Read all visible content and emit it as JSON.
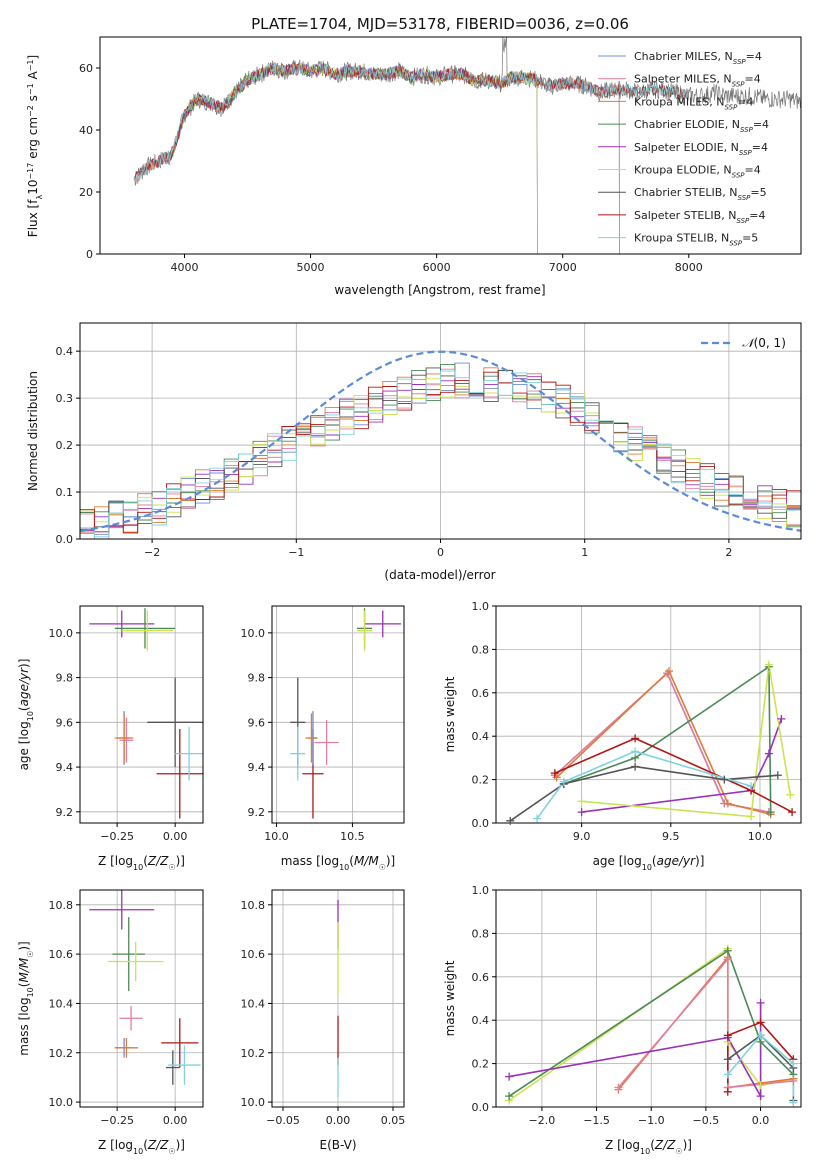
{
  "title": "PLATE=1704, MJD=53178, FIBERID=0036, z=0.06",
  "colors": {
    "Chabrier MILES": "#6b8fd4",
    "Salpeter MILES": "#e27ea0",
    "Kroupa MILES": "#e07b39",
    "Chabrier ELODIE": "#4a8a55",
    "Salpeter ELODIE": "#9b30b8",
    "Kroupa ELODIE": "#cde34e",
    "Chabrier STELIB": "#555555",
    "Salpeter STELIB": "#b01616",
    "Kroupa STELIB": "#7fd3de"
  },
  "chart_data": [
    {
      "id": "spectrum",
      "type": "line",
      "title": "PLATE=1704, MJD=53178, FIBERID=0036, z=0.06",
      "xlabel": "wavelength [Angstrom, rest frame]",
      "ylabel": "Flux [f_λ10^-17 erg cm^-2 s^-1 A^-1]",
      "xlim": [
        3330,
        8890
      ],
      "ylim": [
        0,
        70
      ],
      "xticks": [
        4000,
        5000,
        6000,
        7000,
        8000
      ],
      "yticks": [
        0,
        20,
        40,
        60
      ],
      "grid": false,
      "legend": "top-right",
      "data_spectrum": {
        "name": "data",
        "x": [
          3600,
          3700,
          3800,
          3900,
          4000,
          4100,
          4200,
          4300,
          4400,
          4500,
          4600,
          4700,
          4800,
          4900,
          5000,
          5100,
          5200,
          5300,
          5400,
          5500,
          5600,
          5700,
          5800,
          5900,
          6000,
          6100,
          6200,
          6300,
          6400,
          6500,
          6600,
          6700,
          6800,
          6900,
          7000,
          7100,
          7200,
          7300,
          7400,
          7500,
          7600,
          7700,
          7800,
          7900,
          8000,
          8100,
          8200,
          8300,
          8400,
          8500,
          8600,
          8700,
          8800,
          8890
        ],
        "y": [
          24,
          28,
          30,
          32,
          45,
          50,
          49,
          47,
          52,
          56,
          58,
          60,
          59,
          60,
          59,
          60,
          58,
          59,
          59,
          58,
          58,
          59,
          57,
          58,
          57,
          58,
          58,
          56,
          56,
          55,
          57,
          57,
          56,
          54,
          55,
          55,
          54,
          52,
          53,
          53,
          52,
          53,
          53,
          52,
          51,
          51,
          52,
          51,
          51,
          51,
          50,
          50,
          50,
          49
        ]
      },
      "series": [
        {
          "name": "Chabrier MILES, N_SSP=4",
          "ssp": "4",
          "xmin": 3600,
          "xmax": 7450
        },
        {
          "name": "Salpeter MILES, N_SSP=4",
          "ssp": "4",
          "xmin": 3600,
          "xmax": 7450
        },
        {
          "name": "Kroupa MILES, N_SSP=4",
          "ssp": "4",
          "xmin": 3600,
          "xmax": 7450
        },
        {
          "name": "Chabrier ELODIE, N_SSP=4",
          "ssp": "4",
          "xmin": 3900,
          "xmax": 6800
        },
        {
          "name": "Salpeter ELODIE, N_SSP=4",
          "ssp": "4",
          "xmin": 3900,
          "xmax": 6800
        },
        {
          "name": "Kroupa ELODIE, N_SSP=4",
          "ssp": "4",
          "xmin": 3900,
          "xmax": 6800
        },
        {
          "name": "Chabrier STELIB, N_SSP=5",
          "ssp": "5",
          "xmin": 3600,
          "xmax": 8000
        },
        {
          "name": "Salpeter STELIB, N_SSP=4",
          "ssp": "4",
          "xmin": 3600,
          "xmax": 8000
        },
        {
          "name": "Kroupa STELIB, N_SSP=5",
          "ssp": "5",
          "xmin": 3600,
          "xmax": 8000
        }
      ]
    },
    {
      "id": "residuals",
      "type": "histogram",
      "xlabel": "(data-model)/error",
      "ylabel": "Normed distribution",
      "xlim": [
        -2.5,
        2.5
      ],
      "ylim": [
        0,
        0.46
      ],
      "xticks": [
        -2,
        -1,
        0,
        1,
        2
      ],
      "yticks": [
        0.0,
        0.1,
        0.2,
        0.3,
        0.4
      ],
      "grid": true,
      "legend": "top-right",
      "reference_curve": {
        "name": "N(0,1)",
        "mean": 0,
        "sigma": 1
      },
      "bin_width": 0.1,
      "envelope_x": [
        -2.5,
        -2.0,
        -1.5,
        -1.0,
        -0.5,
        0.0,
        0.5,
        1.0,
        1.5,
        2.0,
        2.5
      ],
      "envelope_y": [
        0.03,
        0.06,
        0.13,
        0.21,
        0.28,
        0.34,
        0.33,
        0.27,
        0.18,
        0.1,
        0.06
      ]
    },
    {
      "id": "age-vs-Z",
      "type": "errorbar",
      "xlabel": "Z [log10(Z/Z_sun)]",
      "ylabel": "age [log10(age/yr)]",
      "xlim": [
        -0.41,
        0.12
      ],
      "ylim": [
        9.15,
        10.12
      ],
      "xticks": [
        -0.25,
        0.0
      ],
      "yticks": [
        9.2,
        9.4,
        9.6,
        9.8,
        10.0
      ],
      "grid": true,
      "points": [
        {
          "series": "Salpeter ELODIE",
          "x": -0.23,
          "y": 10.04,
          "xerr": 0.14,
          "yerr": 0.06
        },
        {
          "series": "Chabrier ELODIE",
          "x": -0.13,
          "y": 10.02,
          "xerr": 0.13,
          "yerr": 0.09
        },
        {
          "series": "Kroupa ELODIE",
          "x": -0.12,
          "y": 10.01,
          "xerr": 0.11,
          "yerr": 0.09
        },
        {
          "series": "Chabrier MILES",
          "x": -0.22,
          "y": 9.53,
          "xerr": 0.03,
          "yerr": 0.12
        },
        {
          "series": "Salpeter MILES",
          "x": -0.21,
          "y": 9.52,
          "xerr": 0.03,
          "yerr": 0.1
        },
        {
          "series": "Kroupa MILES",
          "x": -0.22,
          "y": 9.53,
          "xerr": 0.04,
          "yerr": 0.11
        },
        {
          "series": "Chabrier STELIB",
          "x": 0.0,
          "y": 9.6,
          "xerr": 0.12,
          "yerr": 0.2
        },
        {
          "series": "Salpeter STELIB",
          "x": 0.02,
          "y": 9.37,
          "xerr": 0.1,
          "yerr": 0.2
        },
        {
          "series": "Kroupa STELIB",
          "x": 0.06,
          "y": 9.46,
          "xerr": 0.06,
          "yerr": 0.12
        }
      ]
    },
    {
      "id": "age-vs-mass",
      "type": "errorbar",
      "xlabel": "mass [log10(M/M_sun)]",
      "ylabel": "",
      "xlim": [
        9.97,
        10.84
      ],
      "ylim": [
        9.15,
        10.12
      ],
      "xticks": [
        10.0,
        10.5
      ],
      "yticks": [
        9.2,
        9.4,
        9.6,
        9.8,
        10.0
      ],
      "grid": true,
      "points": [
        {
          "series": "Salpeter ELODIE",
          "x": 10.7,
          "y": 10.04,
          "xerr": 0.12,
          "yerr": 0.06
        },
        {
          "series": "Chabrier ELODIE",
          "x": 10.58,
          "y": 10.02,
          "xerr": 0.05,
          "yerr": 0.09
        },
        {
          "series": "Kroupa ELODIE",
          "x": 10.58,
          "y": 10.01,
          "xerr": 0.05,
          "yerr": 0.09
        },
        {
          "series": "Chabrier STELIB",
          "x": 10.14,
          "y": 9.6,
          "xerr": 0.05,
          "yerr": 0.2
        },
        {
          "series": "Salpeter STELIB",
          "x": 10.24,
          "y": 9.37,
          "xerr": 0.07,
          "yerr": 0.2
        },
        {
          "series": "Kroupa STELIB",
          "x": 10.14,
          "y": 9.46,
          "xerr": 0.05,
          "yerr": 0.12
        },
        {
          "series": "Chabrier MILES",
          "x": 10.24,
          "y": 9.53,
          "xerr": 0.03,
          "yerr": 0.12
        },
        {
          "series": "Salpeter MILES",
          "x": 10.33,
          "y": 9.51,
          "xerr": 0.08,
          "yerr": 0.1
        },
        {
          "series": "Kroupa MILES",
          "x": 10.23,
          "y": 9.53,
          "xerr": 0.04,
          "yerr": 0.11
        }
      ]
    },
    {
      "id": "weight-vs-age",
      "type": "line",
      "xlabel": "age [log10(age/yr)]",
      "ylabel": "mass weight",
      "xlim": [
        8.52,
        10.23
      ],
      "ylim": [
        0,
        1
      ],
      "xticks": [
        9.0,
        9.5,
        10.0
      ],
      "yticks": [
        0.0,
        0.2,
        0.4,
        0.6,
        0.8,
        1.0
      ],
      "grid": true,
      "series": [
        {
          "color": "Chabrier MILES",
          "x": [
            8.85,
            9.48,
            9.8,
            10.05
          ],
          "y": [
            0.22,
            0.69,
            0.09,
            0.05
          ]
        },
        {
          "color": "Salpeter MILES",
          "x": [
            8.85,
            9.48,
            9.8,
            10.05
          ],
          "y": [
            0.22,
            0.69,
            0.09,
            0.05
          ]
        },
        {
          "color": "Kroupa MILES",
          "x": [
            8.86,
            9.49,
            9.82,
            10.06
          ],
          "y": [
            0.21,
            0.7,
            0.09,
            0.04
          ]
        },
        {
          "color": "Chabrier ELODIE",
          "x": [
            8.9,
            9.3,
            10.05,
            10.06
          ],
          "y": [
            0.18,
            0.3,
            0.72,
            0.05
          ]
        },
        {
          "color": "Salpeter ELODIE",
          "x": [
            9.0,
            9.95,
            10.05,
            10.12
          ],
          "y": [
            0.05,
            0.15,
            0.32,
            0.48
          ]
        },
        {
          "color": "Kroupa ELODIE",
          "x": [
            9.0,
            9.95,
            10.05,
            10.17
          ],
          "y": [
            0.1,
            0.03,
            0.73,
            0.13
          ]
        },
        {
          "color": "Chabrier STELIB",
          "x": [
            8.6,
            8.9,
            9.3,
            9.8,
            10.1
          ],
          "y": [
            0.01,
            0.18,
            0.26,
            0.2,
            0.22
          ]
        },
        {
          "color": "Salpeter STELIB",
          "x": [
            8.85,
            9.3,
            9.95,
            10.18
          ],
          "y": [
            0.23,
            0.39,
            0.15,
            0.05
          ]
        },
        {
          "color": "Kroupa STELIB",
          "x": [
            8.75,
            8.9,
            9.3,
            9.95
          ],
          "y": [
            0.02,
            0.19,
            0.33,
            0.17
          ]
        }
      ]
    },
    {
      "id": "mass-vs-Z",
      "type": "errorbar",
      "xlabel": "Z [log10(Z/Z_sun)]",
      "ylabel": "mass [log10(M/M_sun)]",
      "xlim": [
        -0.41,
        0.12
      ],
      "ylim": [
        9.98,
        10.86
      ],
      "xticks": [
        -0.25,
        0.0
      ],
      "yticks": [
        10.0,
        10.2,
        10.4,
        10.6,
        10.8
      ],
      "grid": true,
      "points": [
        {
          "series": "Salpeter ELODIE",
          "x": -0.23,
          "y": 10.78,
          "xerr": 0.14,
          "yerr": 0.08
        },
        {
          "series": "Chabrier ELODIE",
          "x": -0.2,
          "y": 10.6,
          "xerr": 0.07,
          "yerr": 0.15
        },
        {
          "series": "Kroupa ELODIE",
          "x": -0.17,
          "y": 10.57,
          "xerr": 0.12,
          "yerr": 0.08
        },
        {
          "series": "Salpeter MILES",
          "x": -0.19,
          "y": 10.34,
          "xerr": 0.05,
          "yerr": 0.05
        },
        {
          "series": "Chabrier MILES",
          "x": -0.22,
          "y": 10.22,
          "xerr": 0.04,
          "yerr": 0.04
        },
        {
          "series": "Kroupa MILES",
          "x": -0.21,
          "y": 10.22,
          "xerr": 0.05,
          "yerr": 0.04
        },
        {
          "series": "Salpeter STELIB",
          "x": 0.02,
          "y": 10.24,
          "xerr": 0.08,
          "yerr": 0.1
        },
        {
          "series": "Chabrier STELIB",
          "x": -0.01,
          "y": 10.14,
          "xerr": 0.03,
          "yerr": 0.07
        },
        {
          "series": "Kroupa STELIB",
          "x": 0.04,
          "y": 10.15,
          "xerr": 0.07,
          "yerr": 0.08
        }
      ]
    },
    {
      "id": "mass-vs-ebv",
      "type": "errorbar",
      "xlabel": "E(B-V)",
      "ylabel": "",
      "xlim": [
        -0.06,
        0.06
      ],
      "ylim": [
        9.98,
        10.86
      ],
      "xticks": [
        -0.05,
        0.0,
        0.05
      ],
      "yticks": [
        10.0,
        10.2,
        10.4,
        10.6,
        10.8
      ],
      "grid": true,
      "points": [
        {
          "series": "Salpeter ELODIE",
          "x": 0.0,
          "y": 10.72,
          "xerr": 0.0,
          "yerr": 0.1
        },
        {
          "series": "Kroupa ELODIE",
          "x": 0.0,
          "y": 10.58,
          "xerr": 0.0,
          "yerr": 0.15
        },
        {
          "series": "Salpeter STELIB",
          "x": 0.0,
          "y": 10.25,
          "xerr": 0.0,
          "yerr": 0.1
        },
        {
          "series": "Kroupa STELIB",
          "x": 0.0,
          "y": 10.1,
          "xerr": 0.0,
          "yerr": 0.08
        }
      ]
    },
    {
      "id": "weight-vs-Z",
      "type": "line",
      "xlabel": "Z [log10(Z/Z_sun)]",
      "ylabel": "mass weight",
      "xlim": [
        -2.42,
        0.37
      ],
      "ylim": [
        0,
        1
      ],
      "xticks": [
        -2.0,
        -1.5,
        -1.0,
        -0.5,
        0.0
      ],
      "yticks": [
        0.0,
        0.2,
        0.4,
        0.6,
        0.8,
        1.0
      ],
      "grid": true,
      "series": [
        {
          "color": "Kroupa ELODIE",
          "x": [
            -2.3,
            -0.3,
            -0.3,
            0.0,
            0.3
          ],
          "y": [
            0.03,
            0.73,
            0.3,
            0.1,
            0.13
          ]
        },
        {
          "color": "Chabrier ELODIE",
          "x": [
            -2.3,
            -0.3,
            0.0,
            0.3
          ],
          "y": [
            0.05,
            0.72,
            0.3,
            0.15
          ]
        },
        {
          "color": "Kroupa MILES",
          "x": [
            -1.3,
            -0.3,
            -0.3,
            0.3
          ],
          "y": [
            0.08,
            0.69,
            0.09,
            0.13
          ]
        },
        {
          "color": "Salpeter MILES",
          "x": [
            -1.3,
            -0.3,
            -0.3,
            0.3
          ],
          "y": [
            0.09,
            0.68,
            0.09,
            0.12
          ]
        },
        {
          "color": "Salpeter ELODIE",
          "x": [
            -2.3,
            -0.3,
            0.0,
            0.0
          ],
          "y": [
            0.14,
            0.32,
            0.05,
            0.48
          ]
        },
        {
          "color": "Salpeter STELIB",
          "x": [
            -0.3,
            -0.3,
            0.0,
            0.3
          ],
          "y": [
            0.07,
            0.33,
            0.39,
            0.22
          ]
        },
        {
          "color": "Chabrier STELIB",
          "x": [
            -0.3,
            0.0,
            0.3,
            0.3
          ],
          "y": [
            0.22,
            0.33,
            0.18,
            0.03
          ]
        },
        {
          "color": "Kroupa STELIB",
          "x": [
            -0.3,
            0.0,
            0.3,
            0.3
          ],
          "y": [
            0.15,
            0.33,
            0.2,
            0.02
          ]
        }
      ]
    }
  ]
}
